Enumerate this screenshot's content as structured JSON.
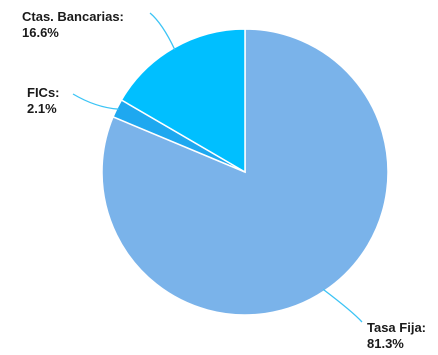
{
  "chart_data": {
    "type": "pie",
    "title": "",
    "start_angle_deg": 0,
    "direction": "clockwise",
    "slices": [
      {
        "category": "Tasa Fija",
        "value": 81.3,
        "label": "Tasa Fija:",
        "value_label": "81.3%",
        "color": "#7ab3ea"
      },
      {
        "category": "FICs",
        "value": 2.1,
        "label": "FICs:",
        "value_label": "2.1%",
        "color": "#1ea8f0"
      },
      {
        "category": "Ctas. Bancarias",
        "value": 16.6,
        "label": "Ctas. Bancarias:",
        "value_label": "16.6%",
        "color": "#00bfff"
      }
    ],
    "leader_line_color": "#3cc4f5",
    "legend": "none"
  }
}
